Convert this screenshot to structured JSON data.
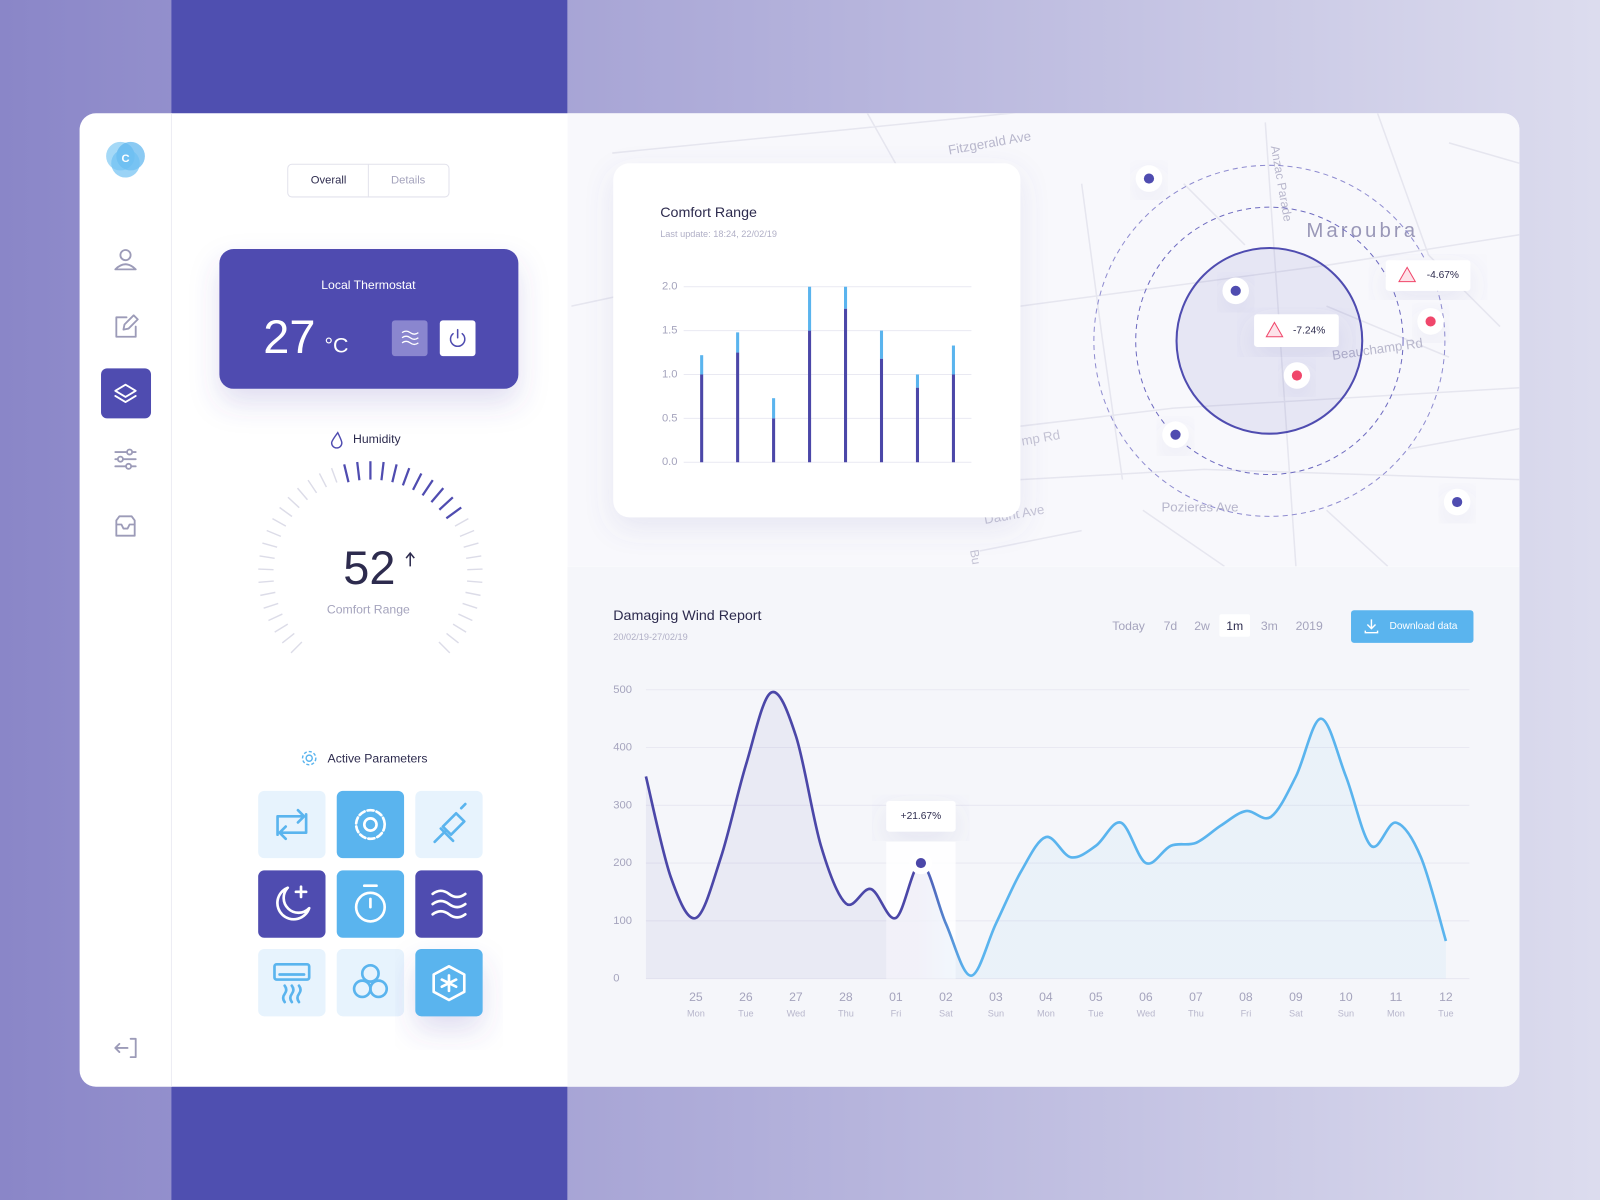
{
  "sidebar": {
    "logo": "C"
  },
  "tabs": [
    "Overall",
    "Details"
  ],
  "thermostat": {
    "title": "Local Thermostat",
    "temperature": 27,
    "unit": "°C"
  },
  "humidity": {
    "label": "Humidity",
    "value": 52,
    "caption": "Comfort Range"
  },
  "active_parameters": {
    "title": "Active Parameters"
  },
  "map": {
    "streets": [
      "Fitzgerald Ave",
      "Anzac Parade",
      "Beauchamp Rd",
      "Pozieres Ave",
      "mp Rd",
      "Daunt Ave",
      "Bu"
    ],
    "suburb": "Maroubra",
    "alerts": [
      "-7.24%",
      "-4.67%"
    ]
  },
  "chart_data": [
    {
      "type": "bar",
      "stacked": true,
      "title": "Comfort Range",
      "subtitle": "Last update: 18:24, 22/02/19",
      "categories": [
        null,
        null,
        null,
        null,
        null,
        null,
        null,
        null
      ],
      "series": [
        {
          "color": "#4b47a8",
          "values": [
            1.0,
            1.25,
            0.5,
            1.5,
            1.75,
            1.18,
            0.85,
            1.0
          ]
        },
        {
          "color": "#5ab4ee",
          "values": [
            0.22,
            0.23,
            0.23,
            0.5,
            0.25,
            0.32,
            0.15,
            0.33
          ]
        }
      ],
      "ylim": [
        0,
        2.0
      ],
      "yticks": [
        {
          "value": 0,
          "label": "0.0"
        },
        0.5,
        {
          "value": 1,
          "label": "1.0"
        },
        1.5,
        {
          "value": 2,
          "label": "2.0"
        }
      ],
      "grid": true
    },
    {
      "type": "line",
      "smooth": true,
      "title": "Damaging Wind Report",
      "subtitle": "20/02/19-27/02/19",
      "range_options": [
        "Today",
        "7d",
        "2w",
        "1m",
        "3m",
        "2019"
      ],
      "selected_range": 3,
      "button": "Download data",
      "categories": [
        null,
        null,
        "25",
        null,
        "26",
        null,
        "27",
        null,
        "28",
        null,
        "01",
        null,
        "02",
        null,
        "03",
        null,
        "04",
        null,
        "05",
        null,
        "06",
        null,
        "07",
        null,
        "08",
        null,
        "09",
        null,
        "10",
        null,
        "11",
        null,
        "12"
      ],
      "weekdays": [
        null,
        null,
        "Mon",
        null,
        "Tue",
        null,
        "Wed",
        null,
        "Thu",
        null,
        "Fri",
        null,
        "Sat",
        null,
        "Sun",
        null,
        "Mon",
        null,
        "Tue",
        null,
        "Wed",
        null,
        "Thu",
        null,
        "Fri",
        null,
        "Sat",
        null,
        "Sun",
        null,
        "Mon",
        null,
        "Tue"
      ],
      "series": [
        {
          "color": "#4b47a8",
          "color_end": "#5ab4ee",
          "values": [
            350,
            175,
            105,
            210,
            370,
            495,
            420,
            230,
            130,
            155,
            105,
            200,
            95,
            5,
            95,
            185,
            245,
            210,
            230,
            270,
            200,
            230,
            235,
            265,
            290,
            280,
            350,
            450,
            350,
            230,
            270,
            210,
            65
          ]
        }
      ],
      "ylim": [
        0,
        500
      ],
      "yticks": [
        0,
        100,
        200,
        300,
        400,
        500
      ],
      "grid": true,
      "annotation": {
        "text": "+21.67%",
        "point": 11
      }
    }
  ]
}
